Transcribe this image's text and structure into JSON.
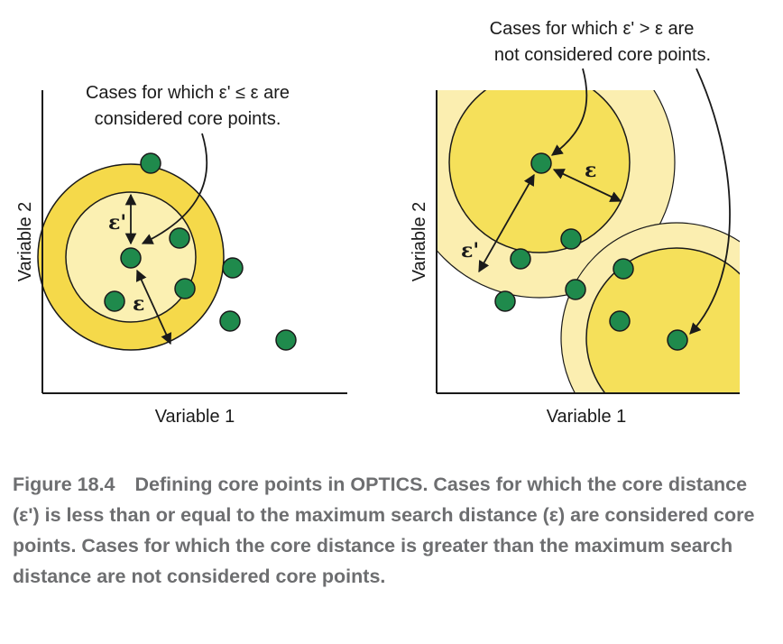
{
  "left_panel": {
    "annotation_lines": [
      "Cases for which ε' ≤ ε are",
      "considered core points."
    ],
    "x_axis_label": "Variable 1",
    "y_axis_label": "Variable 2",
    "epsilon_prime_symbol": "ε'",
    "epsilon_symbol": "ε"
  },
  "right_panel": {
    "annotation_lines": [
      "Cases for which ε' > ε are",
      "not considered core points."
    ],
    "x_axis_label": "Variable 1",
    "y_axis_label": "Variable 2",
    "epsilon_prime_symbol": "ε'",
    "epsilon_symbol": "ε"
  },
  "caption": {
    "figure_number": "Figure 18.4",
    "text": "Defining core points in OPTICS. Cases for which the core distance (ε') is less than or equal to the maximum search distance (ε) are considered core points. Cases for which the core distance is greater than the maximum search distance are not considered core points."
  },
  "colors": {
    "outer_ring": "#f5d94a",
    "inner_disk": "#fbf0b2",
    "right_disk": "#f5e05a",
    "right_halo": "#fbeeb0",
    "point_fill": "#1f8a4c",
    "point_stroke": "#1a1a1a",
    "caption_text": "#6d6e70"
  }
}
